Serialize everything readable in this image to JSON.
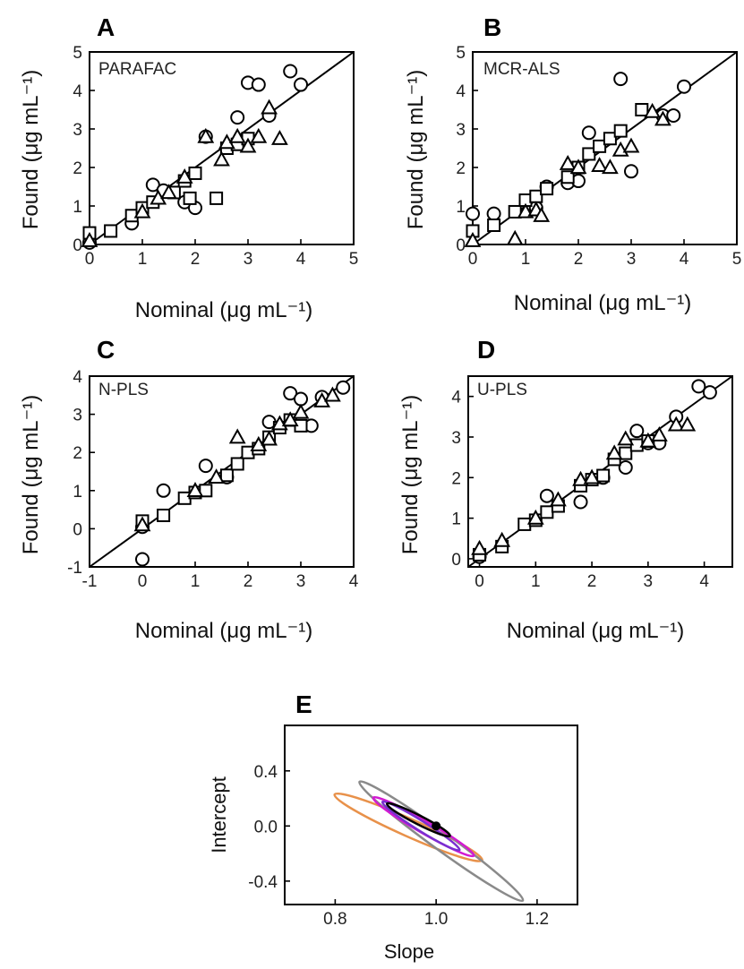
{
  "chart_data": [
    {
      "id": "A",
      "type": "scatter",
      "panel_letter": "A",
      "method": "PARAFAC",
      "xlabel": "Nominal (μg mL⁻¹)",
      "ylabel": "Found (μg mL⁻¹)",
      "xlim": [
        0,
        5
      ],
      "ylim": [
        0,
        5
      ],
      "xticks": [
        "0",
        "1",
        "2",
        "3",
        "4",
        "5"
      ],
      "yticks": [
        "0",
        "1",
        "2",
        "3",
        "4",
        "5"
      ],
      "reference_line": [
        [
          0,
          0
        ],
        [
          5,
          5
        ]
      ],
      "series": [
        {
          "marker": "circle",
          "points": [
            [
              0,
              0.05
            ],
            [
              0.8,
              0.55
            ],
            [
              1.2,
              1.55
            ],
            [
              1.4,
              1.4
            ],
            [
              1.8,
              1.1
            ],
            [
              2.0,
              0.95
            ],
            [
              2.2,
              2.8
            ],
            [
              2.8,
              3.3
            ],
            [
              3.0,
              4.2
            ],
            [
              3.2,
              4.15
            ],
            [
              3.4,
              3.35
            ],
            [
              3.8,
              4.5
            ],
            [
              4.0,
              4.15
            ]
          ]
        },
        {
          "marker": "square",
          "points": [
            [
              0,
              0.3
            ],
            [
              0.4,
              0.35
            ],
            [
              0.8,
              0.75
            ],
            [
              1.0,
              0.95
            ],
            [
              1.2,
              1.1
            ],
            [
              1.6,
              1.35
            ],
            [
              1.8,
              1.65
            ],
            [
              1.9,
              1.2
            ],
            [
              2.0,
              1.85
            ],
            [
              2.4,
              1.2
            ],
            [
              2.6,
              2.5
            ],
            [
              2.8,
              2.6
            ],
            [
              3.0,
              2.75
            ]
          ]
        },
        {
          "marker": "triangle",
          "points": [
            [
              0,
              0.1
            ],
            [
              1.0,
              0.85
            ],
            [
              1.3,
              1.2
            ],
            [
              1.5,
              1.35
            ],
            [
              1.8,
              1.75
            ],
            [
              2.2,
              2.8
            ],
            [
              2.5,
              2.2
            ],
            [
              2.6,
              2.65
            ],
            [
              2.8,
              2.8
            ],
            [
              3.0,
              2.55
            ],
            [
              3.2,
              2.8
            ],
            [
              3.4,
              3.55
            ],
            [
              3.6,
              2.75
            ]
          ]
        }
      ]
    },
    {
      "id": "B",
      "type": "scatter",
      "panel_letter": "B",
      "method": "MCR-ALS",
      "xlabel": "Nominal (μg mL⁻¹)",
      "ylabel": "Found (μg mL⁻¹)",
      "xlim": [
        0,
        5
      ],
      "ylim": [
        0,
        5
      ],
      "xticks": [
        "0",
        "1",
        "2",
        "3",
        "4",
        "5"
      ],
      "yticks": [
        "0",
        "1",
        "2",
        "3",
        "4",
        "5"
      ],
      "reference_line": [
        [
          0,
          0
        ],
        [
          5,
          5
        ]
      ],
      "series": [
        {
          "marker": "circle",
          "points": [
            [
              0,
              0.8
            ],
            [
              0.4,
              0.8
            ],
            [
              1.2,
              0.95
            ],
            [
              1.4,
              1.5
            ],
            [
              1.8,
              1.6
            ],
            [
              2.0,
              1.65
            ],
            [
              2.2,
              2.9
            ],
            [
              2.8,
              4.3
            ],
            [
              3.0,
              1.9
            ],
            [
              3.6,
              3.35
            ],
            [
              3.8,
              3.35
            ],
            [
              4.0,
              4.1
            ]
          ]
        },
        {
          "marker": "square",
          "points": [
            [
              0,
              0.35
            ],
            [
              0.4,
              0.5
            ],
            [
              0.8,
              0.85
            ],
            [
              1.0,
              1.15
            ],
            [
              1.2,
              1.25
            ],
            [
              1.4,
              1.45
            ],
            [
              1.8,
              1.75
            ],
            [
              2.0,
              2.0
            ],
            [
              2.2,
              2.35
            ],
            [
              2.4,
              2.55
            ],
            [
              2.6,
              2.75
            ],
            [
              2.8,
              2.95
            ],
            [
              3.2,
              3.5
            ]
          ]
        },
        {
          "marker": "triangle",
          "points": [
            [
              0,
              0.1
            ],
            [
              0.8,
              0.15
            ],
            [
              1.0,
              0.85
            ],
            [
              1.2,
              0.9
            ],
            [
              1.3,
              0.75
            ],
            [
              1.8,
              2.1
            ],
            [
              2.0,
              2.0
            ],
            [
              2.4,
              2.05
            ],
            [
              2.6,
              2.0
            ],
            [
              2.8,
              2.45
            ],
            [
              3.0,
              2.55
            ],
            [
              3.4,
              3.45
            ],
            [
              3.6,
              3.25
            ]
          ]
        }
      ]
    },
    {
      "id": "C",
      "type": "scatter",
      "panel_letter": "C",
      "method": "N-PLS",
      "xlabel": "Nominal (μg mL⁻¹)",
      "ylabel": "Found (μg mL⁻¹)",
      "xlim": [
        -1,
        4
      ],
      "ylim": [
        -1,
        4
      ],
      "xticks": [
        "-1",
        "0",
        "1",
        "2",
        "3",
        "4"
      ],
      "yticks": [
        "-1",
        "0",
        "1",
        "2",
        "3",
        "4"
      ],
      "reference_line": [
        [
          -1,
          -1
        ],
        [
          4,
          4
        ]
      ],
      "series": [
        {
          "marker": "circle",
          "points": [
            [
              0,
              -0.8
            ],
            [
              0,
              0.05
            ],
            [
              0.4,
              1.0
            ],
            [
              1.2,
              1.65
            ],
            [
              1.6,
              1.35
            ],
            [
              2.4,
              2.8
            ],
            [
              2.8,
              3.55
            ],
            [
              3.0,
              3.4
            ],
            [
              3.2,
              2.7
            ],
            [
              3.4,
              3.45
            ],
            [
              3.8,
              3.7
            ]
          ]
        },
        {
          "marker": "square",
          "points": [
            [
              0,
              0.2
            ],
            [
              0.4,
              0.35
            ],
            [
              0.8,
              0.8
            ],
            [
              1.0,
              0.95
            ],
            [
              1.2,
              1.0
            ],
            [
              1.6,
              1.4
            ],
            [
              1.8,
              1.7
            ],
            [
              2.0,
              2.0
            ],
            [
              2.2,
              2.1
            ],
            [
              2.4,
              2.4
            ],
            [
              2.6,
              2.65
            ],
            [
              2.8,
              2.85
            ],
            [
              3.0,
              2.7
            ]
          ]
        },
        {
          "marker": "triangle",
          "points": [
            [
              0,
              0.1
            ],
            [
              1.0,
              1.0
            ],
            [
              1.4,
              1.35
            ],
            [
              1.8,
              2.4
            ],
            [
              2.2,
              2.2
            ],
            [
              2.4,
              2.35
            ],
            [
              2.6,
              2.75
            ],
            [
              2.8,
              2.85
            ],
            [
              3.0,
              3.05
            ],
            [
              3.4,
              3.35
            ],
            [
              3.6,
              3.5
            ]
          ]
        }
      ]
    },
    {
      "id": "D",
      "type": "scatter",
      "panel_letter": "D",
      "method": "U-PLS",
      "xlabel": "Nominal (μg mL⁻¹)",
      "ylabel": "Found (μg mL⁻¹)",
      "xlim": [
        -0.2,
        4.5
      ],
      "ylim": [
        -0.2,
        4.5
      ],
      "xticks": [
        "0",
        "1",
        "2",
        "3",
        "4"
      ],
      "yticks": [
        "0",
        "1",
        "2",
        "3",
        "4"
      ],
      "reference_line": [
        [
          -0.2,
          -0.2
        ],
        [
          4.5,
          4.5
        ]
      ],
      "series": [
        {
          "marker": "circle",
          "points": [
            [
              0,
              0.05
            ],
            [
              1.2,
              1.55
            ],
            [
              1.8,
              1.4
            ],
            [
              2.2,
              2.0
            ],
            [
              2.6,
              2.25
            ],
            [
              2.8,
              3.15
            ],
            [
              3.0,
              2.85
            ],
            [
              3.2,
              2.85
            ],
            [
              3.5,
              3.5
            ],
            [
              3.9,
              4.25
            ],
            [
              4.1,
              4.1
            ]
          ]
        },
        {
          "marker": "square",
          "points": [
            [
              0,
              0.1
            ],
            [
              0.4,
              0.3
            ],
            [
              0.8,
              0.85
            ],
            [
              1.0,
              0.95
            ],
            [
              1.2,
              1.15
            ],
            [
              1.4,
              1.3
            ],
            [
              1.8,
              1.8
            ],
            [
              2.0,
              1.95
            ],
            [
              2.2,
              2.05
            ],
            [
              2.4,
              2.45
            ],
            [
              2.6,
              2.6
            ],
            [
              2.8,
              2.8
            ],
            [
              3.0,
              2.9
            ]
          ]
        },
        {
          "marker": "triangle",
          "points": [
            [
              0,
              0.25
            ],
            [
              0.4,
              0.45
            ],
            [
              1.0,
              1.0
            ],
            [
              1.4,
              1.45
            ],
            [
              1.8,
              1.95
            ],
            [
              2.0,
              2.0
            ],
            [
              2.4,
              2.6
            ],
            [
              2.6,
              2.95
            ],
            [
              3.0,
              2.9
            ],
            [
              3.2,
              3.05
            ],
            [
              3.5,
              3.3
            ],
            [
              3.7,
              3.3
            ]
          ]
        }
      ]
    },
    {
      "id": "E",
      "type": "scatter",
      "panel_letter": "E",
      "xlabel": "Slope",
      "ylabel": "Intercept",
      "xlim": [
        0.7,
        1.28
      ],
      "ylim": [
        -0.57,
        0.73
      ],
      "xticks": [
        "0.8",
        "1.0",
        "1.2"
      ],
      "yticks": [
        "0.4",
        "0.0",
        "-0.4"
      ],
      "ideal_point": [
        1.0,
        0.0
      ],
      "ellipses": [
        {
          "color": "#e8914a",
          "center": [
            0.945,
            -0.01
          ],
          "semi_axes": [
            0.16,
            0.04
          ],
          "angle_deg": 24
        },
        {
          "color": "#8a8a8a",
          "center": [
            1.01,
            -0.11
          ],
          "semi_axes": [
            0.2,
            0.04
          ],
          "angle_deg": 36
        },
        {
          "color": "#d21ad2",
          "center": [
            0.975,
            -0.005
          ],
          "semi_axes": [
            0.115,
            0.028
          ],
          "angle_deg": 30
        },
        {
          "color": "#7a2fd0",
          "center": [
            0.97,
            0.0
          ],
          "semi_axes": [
            0.09,
            0.022
          ],
          "angle_deg": 32
        },
        {
          "color": "#000000",
          "center": [
            0.965,
            0.045
          ],
          "semi_axes": [
            0.07,
            0.02
          ],
          "angle_deg": 27
        }
      ]
    }
  ]
}
